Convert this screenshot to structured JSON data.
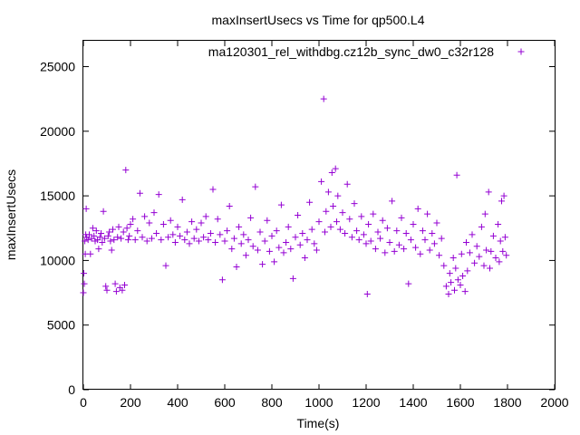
{
  "chart_data": {
    "type": "scatter",
    "title": "maxInsertUsecs vs Time for qp500.L4",
    "xlabel": "Time(s)",
    "ylabel": "maxInsertUsecs",
    "xlim": [
      0,
      2000
    ],
    "ylim": [
      0,
      27000
    ],
    "xticks": [
      "0",
      "200",
      "400",
      "600",
      "800",
      "1000",
      "1200",
      "1400",
      "1600",
      "1800",
      "2000"
    ],
    "yticks": [
      "0",
      "5000",
      "10000",
      "15000",
      "20000",
      "25000"
    ],
    "grid": false,
    "legend_position": "top-right",
    "marker": "plus",
    "color": "#9400d3",
    "series": [
      {
        "name": "ma120301_rel_withdbg.cz12b_sync_dw0_c32r128",
        "points": [
          [
            0,
            7500
          ],
          [
            2,
            9000
          ],
          [
            4,
            8200
          ],
          [
            6,
            11500
          ],
          [
            8,
            10500
          ],
          [
            10,
            12000
          ],
          [
            12,
            14000
          ],
          [
            14,
            11800
          ],
          [
            20,
            11600
          ],
          [
            25,
            12000
          ],
          [
            30,
            10500
          ],
          [
            35,
            11700
          ],
          [
            40,
            12500
          ],
          [
            45,
            11900
          ],
          [
            50,
            11500
          ],
          [
            55,
            12300
          ],
          [
            60,
            11600
          ],
          [
            65,
            10900
          ],
          [
            70,
            11800
          ],
          [
            75,
            12100
          ],
          [
            80,
            11400
          ],
          [
            85,
            13800
          ],
          [
            90,
            11700
          ],
          [
            95,
            8000
          ],
          [
            100,
            7700
          ],
          [
            105,
            11900
          ],
          [
            110,
            12200
          ],
          [
            115,
            11500
          ],
          [
            120,
            10800
          ],
          [
            125,
            12400
          ],
          [
            130,
            11600
          ],
          [
            135,
            8200
          ],
          [
            140,
            7600
          ],
          [
            145,
            11800
          ],
          [
            150,
            12600
          ],
          [
            155,
            7900
          ],
          [
            160,
            11700
          ],
          [
            165,
            7700
          ],
          [
            170,
            12200
          ],
          [
            175,
            8100
          ],
          [
            180,
            17000
          ],
          [
            185,
            12500
          ],
          [
            190,
            11600
          ],
          [
            195,
            11900
          ],
          [
            200,
            12800
          ],
          [
            210,
            13200
          ],
          [
            220,
            11600
          ],
          [
            230,
            12300
          ],
          [
            240,
            15200
          ],
          [
            250,
            11800
          ],
          [
            260,
            13400
          ],
          [
            270,
            11500
          ],
          [
            280,
            12900
          ],
          [
            290,
            11700
          ],
          [
            300,
            13700
          ],
          [
            310,
            12100
          ],
          [
            320,
            15100
          ],
          [
            330,
            11600
          ],
          [
            340,
            12800
          ],
          [
            350,
            9600
          ],
          [
            360,
            11800
          ],
          [
            370,
            13100
          ],
          [
            380,
            12000
          ],
          [
            390,
            11400
          ],
          [
            400,
            12600
          ],
          [
            410,
            11900
          ],
          [
            420,
            14700
          ],
          [
            430,
            11600
          ],
          [
            440,
            12200
          ],
          [
            450,
            11300
          ],
          [
            460,
            13000
          ],
          [
            470,
            11700
          ],
          [
            480,
            12400
          ],
          [
            490,
            11500
          ],
          [
            500,
            12900
          ],
          [
            510,
            11800
          ],
          [
            520,
            13400
          ],
          [
            530,
            11600
          ],
          [
            540,
            12100
          ],
          [
            550,
            15500
          ],
          [
            560,
            11400
          ],
          [
            570,
            13200
          ],
          [
            580,
            12000
          ],
          [
            590,
            8500
          ],
          [
            600,
            11500
          ],
          [
            610,
            12300
          ],
          [
            620,
            14200
          ],
          [
            630,
            10900
          ],
          [
            640,
            11700
          ],
          [
            650,
            9500
          ],
          [
            660,
            12600
          ],
          [
            670,
            11300
          ],
          [
            680,
            12000
          ],
          [
            690,
            10400
          ],
          [
            700,
            11600
          ],
          [
            710,
            13300
          ],
          [
            720,
            11100
          ],
          [
            730,
            15700
          ],
          [
            740,
            10800
          ],
          [
            750,
            12200
          ],
          [
            760,
            9700
          ],
          [
            770,
            11500
          ],
          [
            780,
            13100
          ],
          [
            790,
            10700
          ],
          [
            800,
            11900
          ],
          [
            810,
            9900
          ],
          [
            820,
            12300
          ],
          [
            830,
            11000
          ],
          [
            840,
            14300
          ],
          [
            850,
            10600
          ],
          [
            860,
            11400
          ],
          [
            870,
            12600
          ],
          [
            880,
            10900
          ],
          [
            890,
            8600
          ],
          [
            900,
            11800
          ],
          [
            910,
            13500
          ],
          [
            920,
            11200
          ],
          [
            930,
            12100
          ],
          [
            940,
            10200
          ],
          [
            950,
            11600
          ],
          [
            960,
            14500
          ],
          [
            970,
            12400
          ],
          [
            980,
            11300
          ],
          [
            990,
            10800
          ],
          [
            1000,
            13000
          ],
          [
            1010,
            16100
          ],
          [
            1020,
            22500
          ],
          [
            1025,
            12200
          ],
          [
            1030,
            13800
          ],
          [
            1040,
            15300
          ],
          [
            1050,
            12600
          ],
          [
            1055,
            16800
          ],
          [
            1060,
            14200
          ],
          [
            1070,
            17100
          ],
          [
            1075,
            13000
          ],
          [
            1080,
            15000
          ],
          [
            1090,
            12400
          ],
          [
            1100,
            13700
          ],
          [
            1110,
            12100
          ],
          [
            1120,
            15900
          ],
          [
            1130,
            13200
          ],
          [
            1140,
            11800
          ],
          [
            1150,
            14400
          ],
          [
            1160,
            12300
          ],
          [
            1170,
            11600
          ],
          [
            1180,
            13400
          ],
          [
            1190,
            12000
          ],
          [
            1200,
            11300
          ],
          [
            1205,
            7400
          ],
          [
            1210,
            12800
          ],
          [
            1220,
            11500
          ],
          [
            1230,
            13600
          ],
          [
            1240,
            10900
          ],
          [
            1250,
            12200
          ],
          [
            1260,
            11700
          ],
          [
            1270,
            13100
          ],
          [
            1280,
            10600
          ],
          [
            1290,
            12500
          ],
          [
            1300,
            11400
          ],
          [
            1310,
            14600
          ],
          [
            1320,
            10700
          ],
          [
            1330,
            12300
          ],
          [
            1340,
            11200
          ],
          [
            1350,
            13300
          ],
          [
            1360,
            10900
          ],
          [
            1370,
            12100
          ],
          [
            1380,
            8200
          ],
          [
            1390,
            11600
          ],
          [
            1400,
            12800
          ],
          [
            1410,
            11000
          ],
          [
            1420,
            14000
          ],
          [
            1430,
            10500
          ],
          [
            1440,
            12300
          ],
          [
            1450,
            11600
          ],
          [
            1460,
            13600
          ],
          [
            1470,
            10800
          ],
          [
            1480,
            12100
          ],
          [
            1490,
            11300
          ],
          [
            1500,
            12900
          ],
          [
            1510,
            10400
          ],
          [
            1520,
            11700
          ],
          [
            1530,
            9600
          ],
          [
            1540,
            8000
          ],
          [
            1550,
            7400
          ],
          [
            1555,
            9000
          ],
          [
            1560,
            8300
          ],
          [
            1570,
            10200
          ],
          [
            1575,
            7700
          ],
          [
            1580,
            9400
          ],
          [
            1585,
            16600
          ],
          [
            1590,
            8500
          ],
          [
            1600,
            8100
          ],
          [
            1605,
            10500
          ],
          [
            1610,
            8800
          ],
          [
            1620,
            7600
          ],
          [
            1625,
            11400
          ],
          [
            1630,
            9200
          ],
          [
            1640,
            10600
          ],
          [
            1650,
            12000
          ],
          [
            1660,
            9800
          ],
          [
            1670,
            11100
          ],
          [
            1680,
            10300
          ],
          [
            1690,
            12600
          ],
          [
            1700,
            9600
          ],
          [
            1705,
            13600
          ],
          [
            1710,
            10800
          ],
          [
            1720,
            15300
          ],
          [
            1725,
            9400
          ],
          [
            1730,
            10700
          ],
          [
            1740,
            11900
          ],
          [
            1750,
            10200
          ],
          [
            1760,
            12800
          ],
          [
            1765,
            9900
          ],
          [
            1770,
            11500
          ],
          [
            1775,
            14600
          ],
          [
            1780,
            10700
          ],
          [
            1785,
            15000
          ],
          [
            1790,
            11800
          ],
          [
            1795,
            10400
          ]
        ]
      }
    ]
  }
}
